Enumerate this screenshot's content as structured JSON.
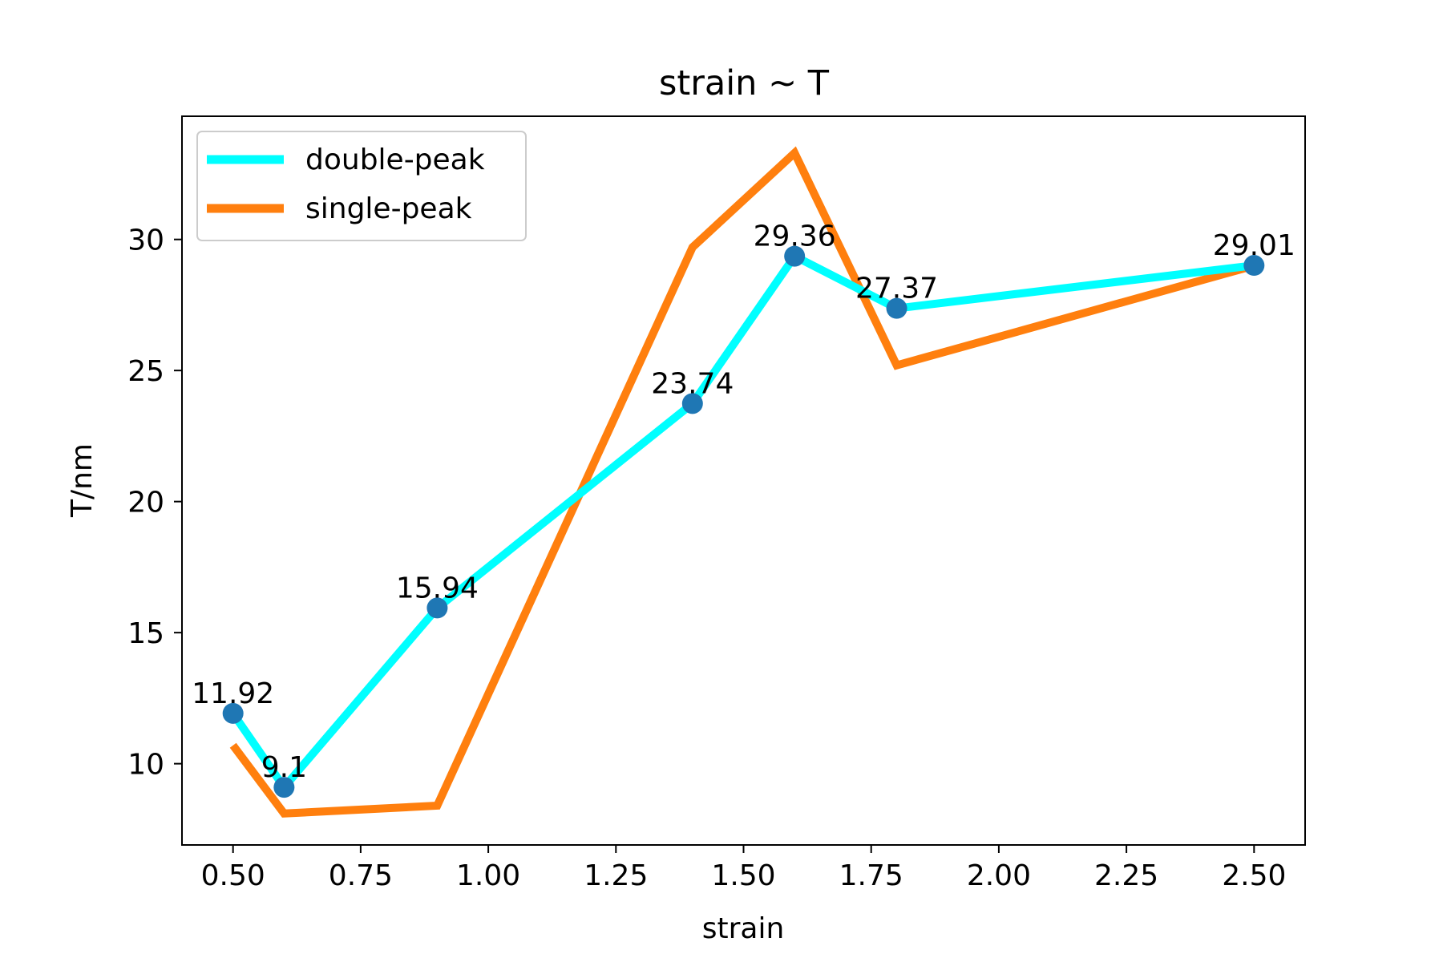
{
  "chart_data": {
    "type": "line",
    "title": "strain ~ T",
    "xlabel": "strain",
    "ylabel": "T/nm",
    "xlim": [
      0.4,
      2.6
    ],
    "ylim": [
      6.9,
      34.7
    ],
    "x_ticks": [
      0.5,
      0.75,
      1.0,
      1.25,
      1.5,
      1.75,
      2.0,
      2.25,
      2.5
    ],
    "x_tick_labels": [
      "0.50",
      "0.75",
      "1.00",
      "1.25",
      "1.50",
      "1.75",
      "2.00",
      "2.25",
      "2.50"
    ],
    "y_ticks": [
      10,
      15,
      20,
      25,
      30
    ],
    "y_tick_labels": [
      "10",
      "15",
      "20",
      "25",
      "30"
    ],
    "grid": false,
    "legend_position": "upper-left",
    "series": [
      {
        "name": "double-peak",
        "color": "#00ffff",
        "x": [
          0.5,
          0.6,
          0.9,
          1.4,
          1.6,
          1.8,
          2.5
        ],
        "y": [
          11.92,
          9.1,
          15.94,
          23.74,
          29.36,
          27.37,
          29.01
        ],
        "markers": true,
        "marker_color": "#1f77b4",
        "data_labels": [
          "11.92",
          "9.1",
          "15.94",
          "23.74",
          "29.36",
          "27.37",
          "29.01"
        ]
      },
      {
        "name": "single-peak",
        "color": "#ff7f0e",
        "x": [
          0.5,
          0.6,
          0.9,
          1.4,
          1.6,
          1.8,
          2.5
        ],
        "y": [
          10.7,
          8.1,
          8.4,
          29.7,
          33.3,
          25.2,
          29.0
        ],
        "markers": false
      }
    ]
  }
}
